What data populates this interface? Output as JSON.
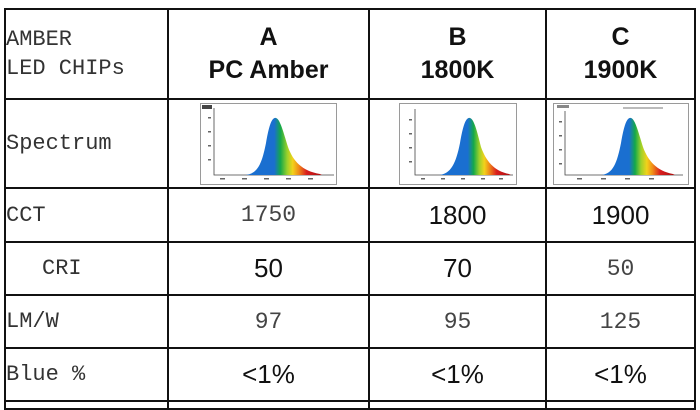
{
  "header": {
    "corner_label_line1": "AMBER",
    "corner_label_line2": "LED CHIPs",
    "columns": [
      {
        "letter": "A",
        "name": "PC Amber"
      },
      {
        "letter": "B",
        "name": "1800K"
      },
      {
        "letter": "C",
        "name": "1900K"
      }
    ]
  },
  "rows": [
    {
      "label": "Spectrum"
    },
    {
      "label": "CCT",
      "values": [
        "1750",
        "1800",
        "1900"
      ]
    },
    {
      "label": "CRI",
      "values": [
        "50",
        "70",
        "50"
      ]
    },
    {
      "label": "LM/W",
      "values": [
        "97",
        "95",
        "125"
      ]
    },
    {
      "label": "Blue %",
      "values": [
        "<1%",
        "<1%",
        "<1%"
      ]
    }
  ],
  "colors": {
    "border": "#111111",
    "spectrum_peak": "#d81e1e"
  }
}
